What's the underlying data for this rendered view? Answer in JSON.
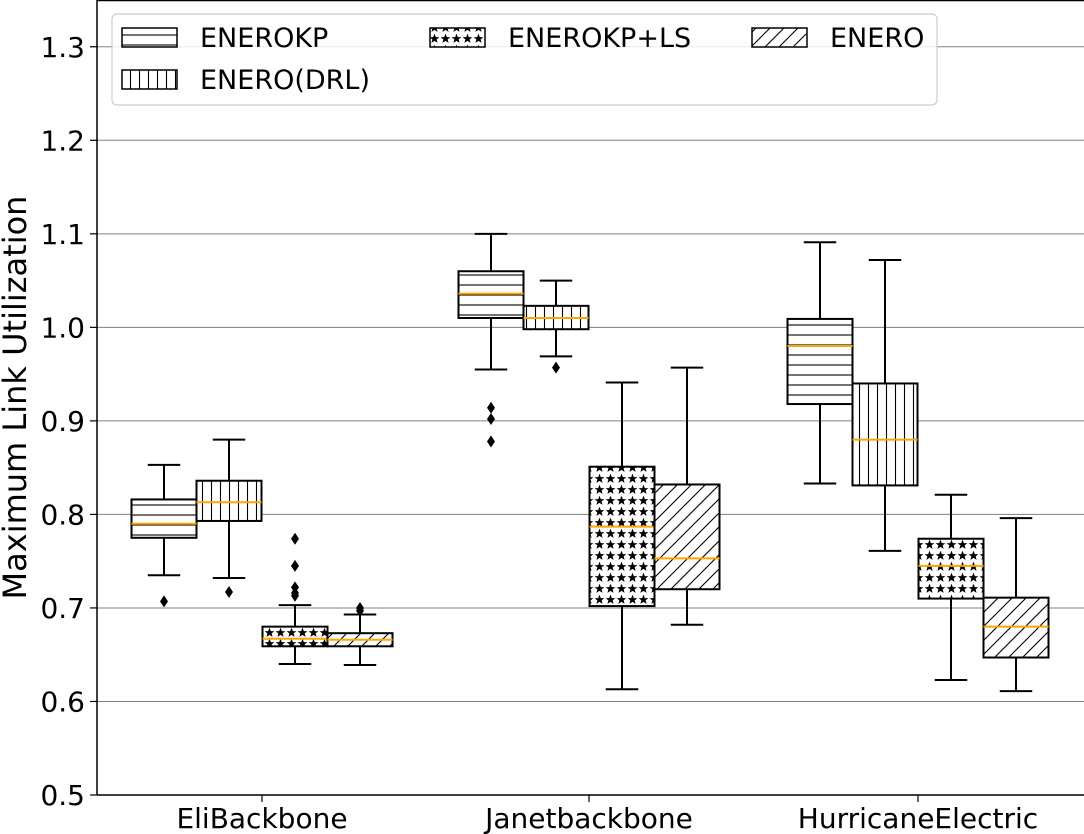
{
  "chart_data": {
    "type": "box",
    "ylabel": "Maximum Link Utilization",
    "xlabel": "",
    "ylim": [
      0.5,
      1.35
    ],
    "yticks": [
      "0.5",
      "0.6",
      "0.7",
      "0.8",
      "0.9",
      "1.0",
      "1.1",
      "1.2",
      "1.3"
    ],
    "grid": "horizontal",
    "legend_placement": "top",
    "categories": [
      "EliBackbone",
      "Janetbackbone",
      "HurricaneElectric"
    ],
    "colors": {
      "median": "#ffa500",
      "grid": "#808080",
      "box": "#000000"
    },
    "series": [
      {
        "name": "ENEROKP",
        "hatch": "horizontal",
        "boxes": [
          {
            "whislo": 0.735,
            "q1": 0.775,
            "med": 0.79,
            "q3": 0.816,
            "whishi": 0.853,
            "fliers": [
              0.707
            ]
          },
          {
            "whislo": 0.955,
            "q1": 1.01,
            "med": 1.036,
            "q3": 1.06,
            "whishi": 1.1,
            "fliers": [
              0.878,
              0.902,
              0.914
            ]
          },
          {
            "whislo": 0.833,
            "q1": 0.918,
            "med": 0.98,
            "q3": 1.009,
            "whishi": 1.091,
            "fliers": []
          }
        ]
      },
      {
        "name": "ENERO(DRL)",
        "hatch": "vertical",
        "boxes": [
          {
            "whislo": 0.732,
            "q1": 0.793,
            "med": 0.813,
            "q3": 0.836,
            "whishi": 0.88,
            "fliers": [
              0.717
            ]
          },
          {
            "whislo": 0.969,
            "q1": 0.998,
            "med": 1.01,
            "q3": 1.023,
            "whishi": 1.05,
            "fliers": [
              0.957
            ]
          },
          {
            "whislo": 0.761,
            "q1": 0.831,
            "med": 0.88,
            "q3": 0.94,
            "whishi": 1.072,
            "fliers": []
          }
        ]
      },
      {
        "name": "ENEROKP+LS",
        "hatch": "stars",
        "boxes": [
          {
            "whislo": 0.64,
            "q1": 0.659,
            "med": 0.667,
            "q3": 0.68,
            "whishi": 0.703,
            "fliers": [
              0.713,
              0.716,
              0.722,
              0.745,
              0.774
            ]
          },
          {
            "whislo": 0.613,
            "q1": 0.702,
            "med": 0.787,
            "q3": 0.851,
            "whishi": 0.941,
            "fliers": []
          },
          {
            "whislo": 0.623,
            "q1": 0.71,
            "med": 0.745,
            "q3": 0.774,
            "whishi": 0.821,
            "fliers": []
          }
        ]
      },
      {
        "name": "ENERO",
        "hatch": "diagonal",
        "boxes": [
          {
            "whislo": 0.639,
            "q1": 0.659,
            "med": 0.666,
            "q3": 0.673,
            "whishi": 0.693,
            "fliers": [
              0.697,
              0.7
            ]
          },
          {
            "whislo": 0.682,
            "q1": 0.72,
            "med": 0.753,
            "q3": 0.832,
            "whishi": 0.957,
            "fliers": []
          },
          {
            "whislo": 0.611,
            "q1": 0.647,
            "med": 0.68,
            "q3": 0.711,
            "whishi": 0.796,
            "fliers": []
          }
        ]
      }
    ]
  }
}
